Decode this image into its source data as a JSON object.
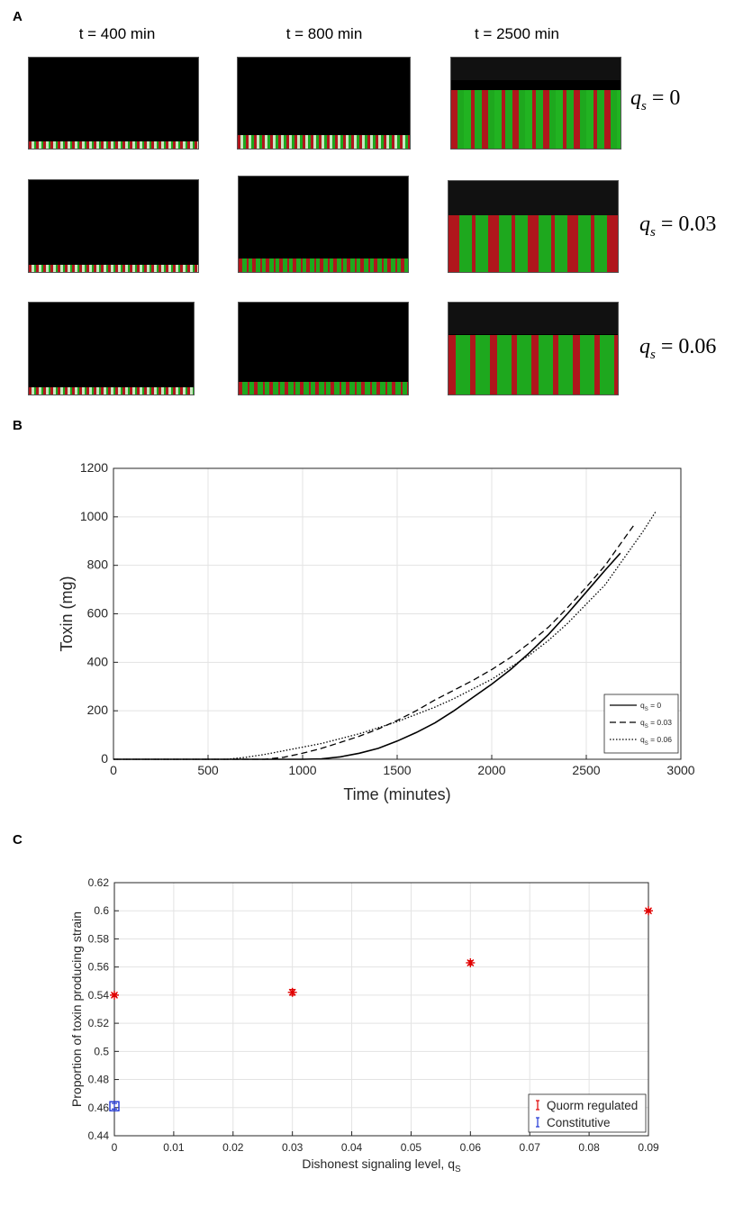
{
  "panels": {
    "a": "A",
    "b": "B",
    "c": "C"
  },
  "panel_a": {
    "times": [
      "t = 400 min",
      "t = 800 min",
      "t = 2500 min"
    ],
    "rows": [
      {
        "qs_symbol": "q",
        "qs_sub": "s",
        "qs_value": " = 0"
      },
      {
        "qs_symbol": "q",
        "qs_sub": "s",
        "qs_value": " = 0.03"
      },
      {
        "qs_symbol": "q",
        "qs_sub": "s",
        "qs_value": " = 0.06"
      }
    ],
    "colors": {
      "background": "#000000",
      "producer": "#b0161c",
      "nonproducer": "#1ea81e",
      "early_cells": "#c9e6c0"
    }
  },
  "chart_data": [
    {
      "type": "line",
      "xlabel": "Time (minutes)",
      "ylabel": "Toxin (mg)",
      "xlim": [
        0,
        3000
      ],
      "ylim": [
        0,
        1200
      ],
      "xticks": [
        "0",
        "500",
        "1000",
        "1500",
        "2000",
        "2500",
        "3000"
      ],
      "yticks": [
        "0",
        "200",
        "400",
        "600",
        "800",
        "1000",
        "1200"
      ],
      "grid": true,
      "legend_position": "bottom-right",
      "series": [
        {
          "name": "q_S = 0",
          "legend_main": "q",
          "legend_sub": "S",
          "legend_val": " = 0",
          "style": "solid",
          "x": [
            0,
            1000,
            1100,
            1200,
            1300,
            1400,
            1500,
            1600,
            1700,
            1800,
            1900,
            2000,
            2100,
            2200,
            2300,
            2400,
            2500,
            2600,
            2680
          ],
          "y": [
            0,
            0,
            2,
            10,
            25,
            45,
            75,
            110,
            150,
            200,
            255,
            310,
            370,
            440,
            515,
            600,
            690,
            780,
            850
          ]
        },
        {
          "name": "q_S = 0.03",
          "legend_main": "q",
          "legend_sub": "S",
          "legend_val": " = 0.03",
          "style": "dashed",
          "x": [
            0,
            800,
            900,
            1000,
            1100,
            1200,
            1300,
            1400,
            1500,
            1600,
            1700,
            1800,
            1900,
            2000,
            2100,
            2200,
            2300,
            2400,
            2500,
            2600,
            2700,
            2760
          ],
          "y": [
            0,
            0,
            8,
            25,
            45,
            70,
            95,
            125,
            160,
            200,
            245,
            285,
            325,
            370,
            420,
            480,
            545,
            625,
            710,
            800,
            910,
            975
          ]
        },
        {
          "name": "q_S = 0.06",
          "legend_main": "q",
          "legend_sub": "S",
          "legend_val": " = 0.06",
          "style": "dotted",
          "x": [
            0,
            600,
            700,
            800,
            900,
            1000,
            1100,
            1200,
            1300,
            1400,
            1500,
            1600,
            1700,
            1800,
            1900,
            2000,
            2100,
            2200,
            2300,
            2400,
            2500,
            2600,
            2700,
            2800,
            2870
          ],
          "y": [
            0,
            0,
            8,
            20,
            35,
            50,
            65,
            85,
            105,
            130,
            155,
            185,
            215,
            250,
            290,
            330,
            380,
            430,
            490,
            560,
            640,
            720,
            830,
            940,
            1025
          ]
        }
      ]
    },
    {
      "type": "scatter",
      "xlabel": "Dishonest signaling level, q",
      "xlabel_sub": "S",
      "ylabel": "Proportion of toxin producing strain",
      "xlim": [
        0,
        0.09
      ],
      "ylim": [
        0.44,
        0.62
      ],
      "xticks": [
        "0",
        "0.01",
        "0.02",
        "0.03",
        "0.04",
        "0.05",
        "0.06",
        "0.07",
        "0.08",
        "0.09"
      ],
      "yticks": [
        "0.44",
        "0.46",
        "0.48",
        "0.5",
        "0.52",
        "0.54",
        "0.56",
        "0.58",
        "0.6",
        "0.62"
      ],
      "grid": true,
      "legend_position": "bottom-right",
      "series": [
        {
          "name": "Quorm regulated",
          "color": "#e00000",
          "marker": "asterisk",
          "x": [
            0,
            0.03,
            0.06,
            0.09
          ],
          "y": [
            0.54,
            0.542,
            0.563,
            0.6
          ],
          "err": [
            0.001,
            0.002,
            0.0015,
            0.001
          ]
        },
        {
          "name": "Constitutive",
          "color": "#1f35d6",
          "marker": "square",
          "x": [
            0
          ],
          "y": [
            0.461
          ],
          "err": [
            0.002
          ]
        }
      ]
    }
  ]
}
